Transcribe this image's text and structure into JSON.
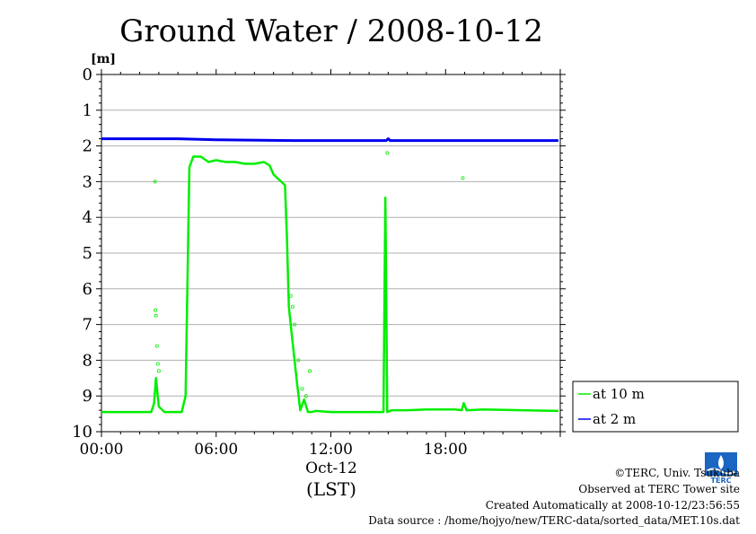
{
  "chart_data": {
    "type": "line",
    "title": "Ground Water / 2008-10-12",
    "ylabel": "[m]",
    "y_inverted": true,
    "ylim": [
      0,
      10
    ],
    "xlim_hours": [
      0,
      24
    ],
    "x_ticks": [
      "00:00",
      "06:00",
      "12:00",
      "18:00"
    ],
    "x_date_label": "Oct-12",
    "xlabel": "(LST)",
    "y_ticks": [
      "0",
      "1",
      "2",
      "3",
      "4",
      "5",
      "6",
      "7",
      "8",
      "9",
      "10"
    ],
    "grid": true,
    "legend_position": "right",
    "series": [
      {
        "name": "at 10 m",
        "color": "#00ee00",
        "x_hours": [
          0,
          2.0,
          2.6,
          2.75,
          2.85,
          3.0,
          3.3,
          4.2,
          4.4,
          4.6,
          4.8,
          5.2,
          5.6,
          6.0,
          6.5,
          7.0,
          7.5,
          8.0,
          8.5,
          8.8,
          9.0,
          9.3,
          9.6,
          9.7,
          9.8,
          10.0,
          10.2,
          10.4,
          10.6,
          10.8,
          11.0,
          11.2,
          12.0,
          14.0,
          14.75,
          14.85,
          14.95,
          15.2,
          16.0,
          17.0,
          18.5,
          18.85,
          18.95,
          19.1,
          20.0,
          22.0,
          23.9
        ],
        "values": [
          9.45,
          9.45,
          9.45,
          9.2,
          8.5,
          9.3,
          9.45,
          9.45,
          9.0,
          2.6,
          2.3,
          2.3,
          2.45,
          2.4,
          2.45,
          2.45,
          2.5,
          2.5,
          2.45,
          2.55,
          2.8,
          2.95,
          3.1,
          4.5,
          6.5,
          7.5,
          8.5,
          9.4,
          9.1,
          9.45,
          9.45,
          9.42,
          9.45,
          9.45,
          9.45,
          3.45,
          9.45,
          9.4,
          9.4,
          9.38,
          9.38,
          9.4,
          9.2,
          9.4,
          9.38,
          9.4,
          9.42
        ]
      },
      {
        "name": "at 2 m",
        "color": "#0000ee",
        "x_hours": [
          0,
          4.0,
          6.0,
          10.0,
          14.9,
          15.0,
          15.1,
          20.0,
          23.9
        ],
        "values": [
          1.8,
          1.8,
          1.83,
          1.85,
          1.85,
          1.8,
          1.85,
          1.85,
          1.85
        ]
      }
    ],
    "scatter_points_10m": {
      "x_hours": [
        2.8,
        2.82,
        2.85,
        2.9,
        2.95,
        3.0,
        9.9,
        10.0,
        10.1,
        10.3,
        10.5,
        10.7,
        10.9,
        14.95,
        18.9
      ],
      "values": [
        3.0,
        6.6,
        6.75,
        7.6,
        8.1,
        8.3,
        6.2,
        6.5,
        7.0,
        8.0,
        8.8,
        9.0,
        8.3,
        2.2,
        2.9
      ]
    }
  },
  "footer": {
    "copyright": "©TERC, Univ. Tsukuba",
    "site": "Observed at TERC Tower site",
    "created": "Created Automatically at 2008-10-12/23:56:55",
    "source": "Data source : /home/hojyo/new/TERC-data/sorted_data/MET.10s.dat"
  },
  "logo": {
    "text": "TERC",
    "color": "#1a66c2"
  }
}
